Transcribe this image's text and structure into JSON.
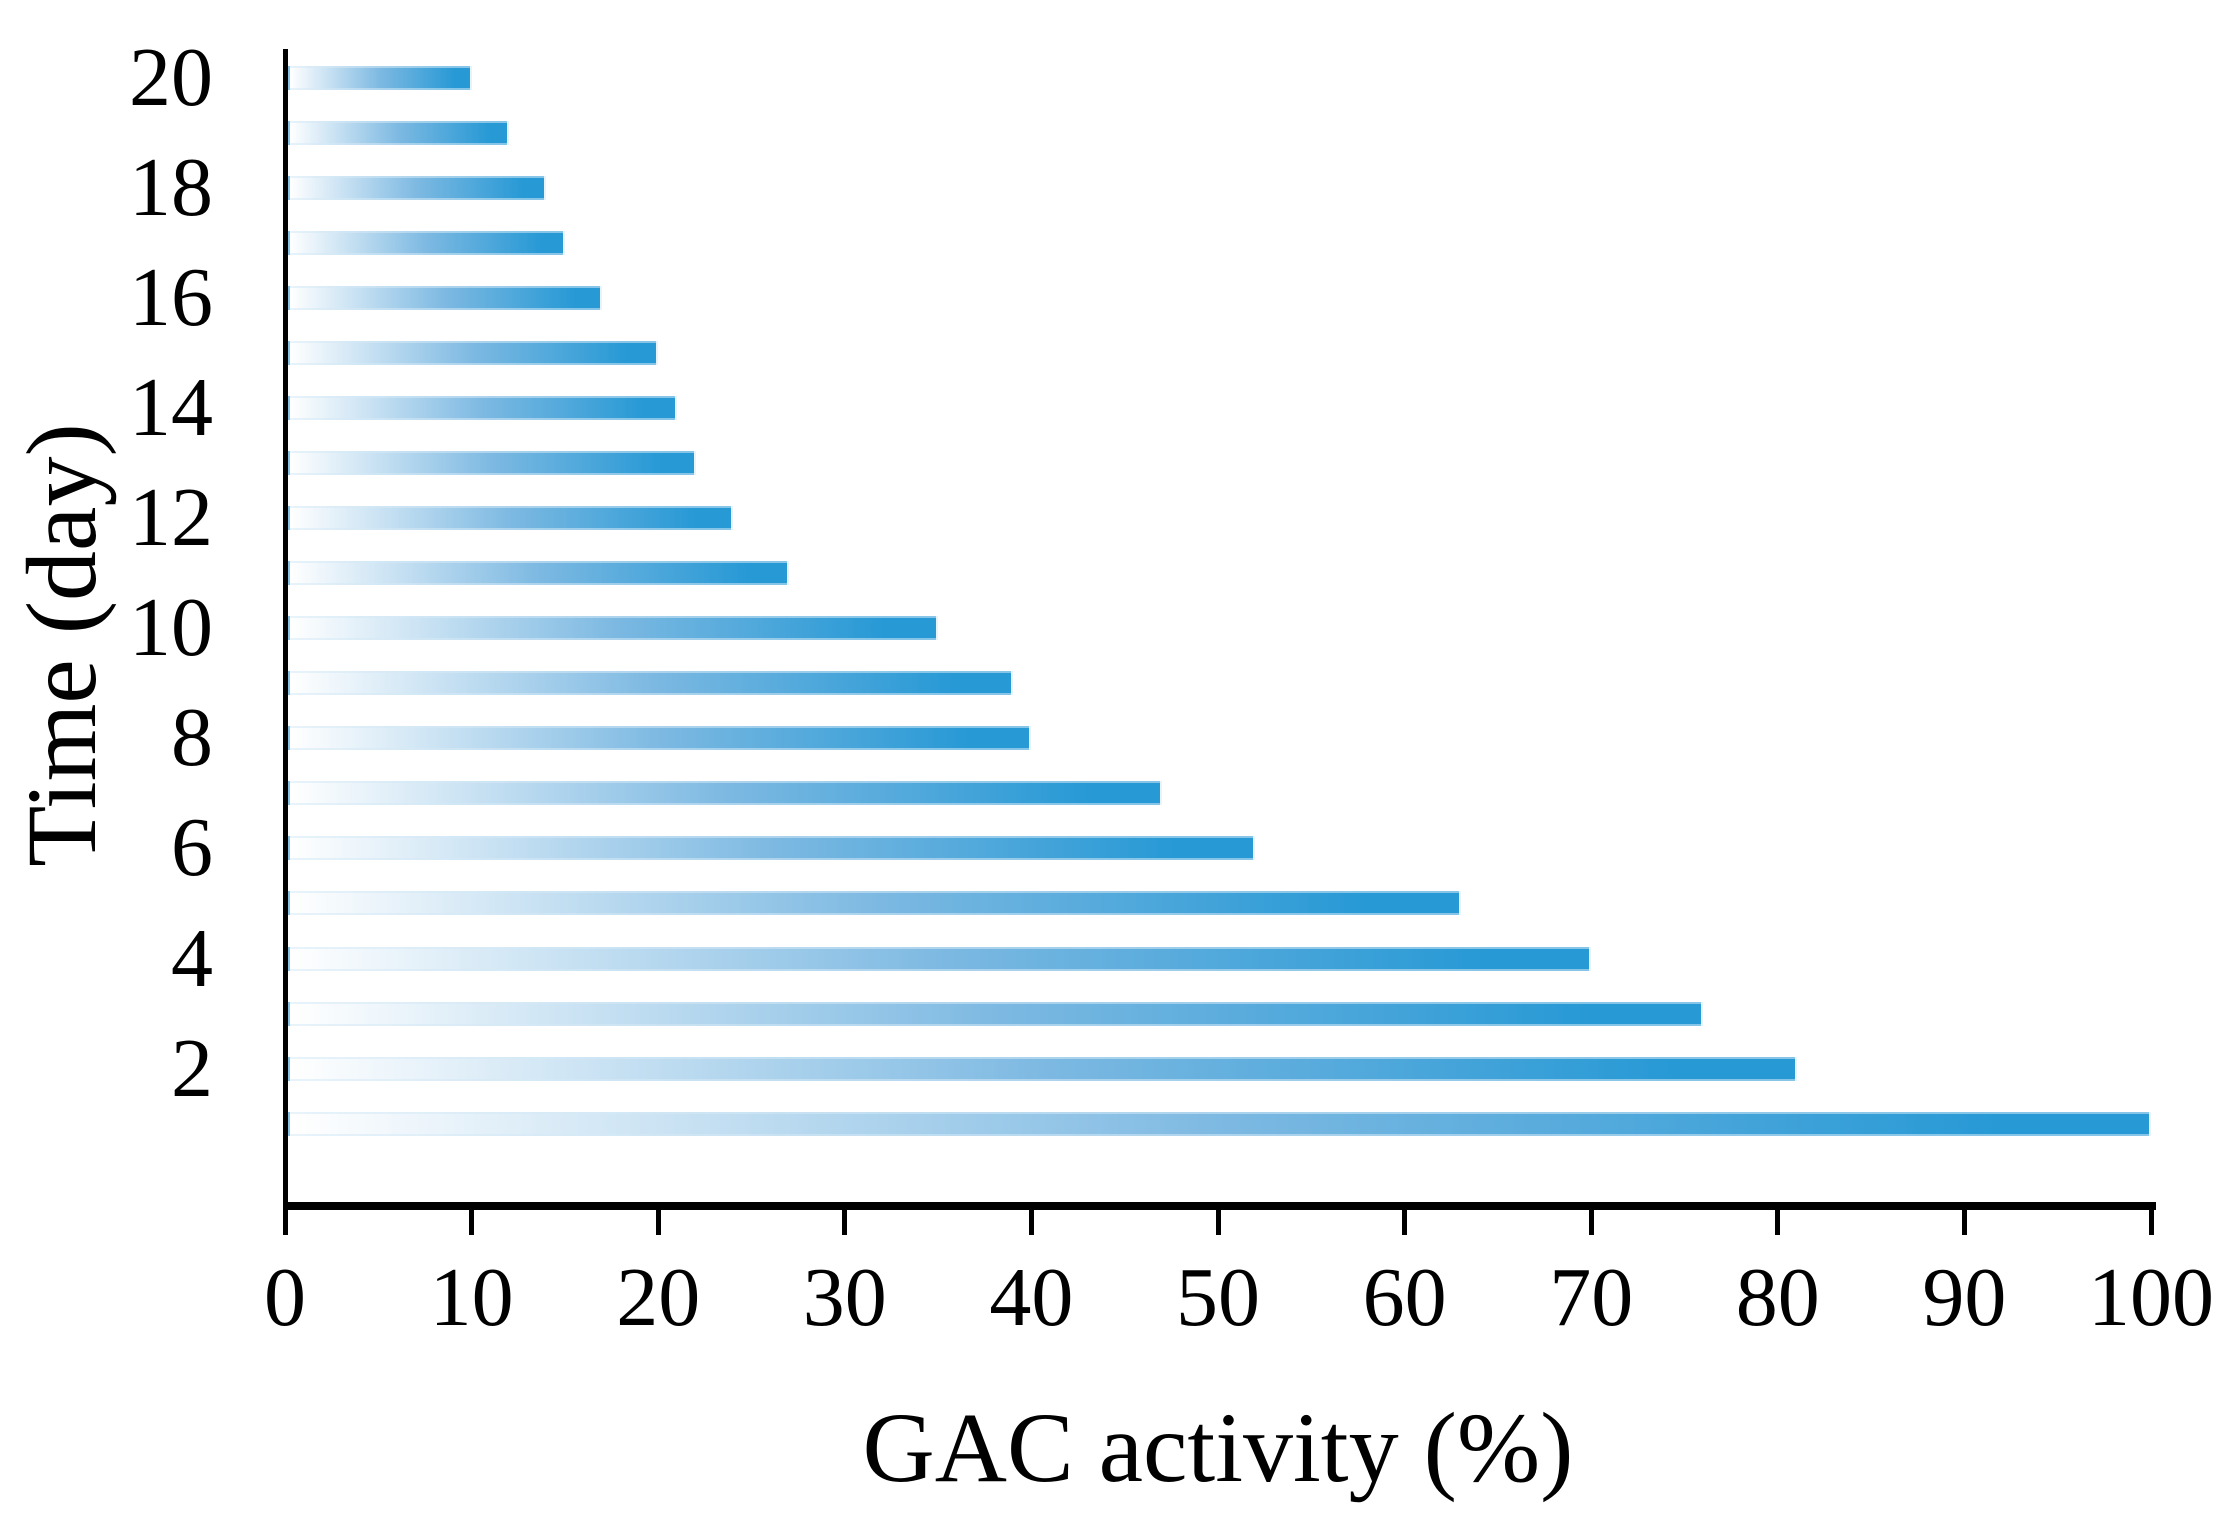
{
  "figure": {
    "background": "#ffffff",
    "axis_color": "#000000",
    "text_color": "#000000"
  },
  "chart_data": {
    "type": "bar",
    "orientation": "horizontal",
    "title": "",
    "xlabel": "GAC activity (%)",
    "ylabel": "Time (day)",
    "categories": [
      1,
      2,
      3,
      4,
      5,
      6,
      7,
      8,
      9,
      10,
      11,
      12,
      13,
      14,
      15,
      16,
      17,
      18,
      19,
      20
    ],
    "values": [
      100,
      81,
      76,
      70,
      63,
      52,
      47,
      40,
      39,
      35,
      27,
      24,
      22,
      21,
      20,
      17,
      15,
      14,
      12,
      10
    ],
    "xlim": [
      0,
      100
    ],
    "x_ticks": [
      0,
      10,
      20,
      30,
      40,
      50,
      60,
      70,
      80,
      90,
      100
    ],
    "y_labeled_days": [
      20,
      18,
      16,
      14,
      12,
      10,
      8,
      6,
      4,
      2
    ],
    "grid": false,
    "legend_position": "none",
    "bar_gradient": {
      "start": "#ffffff",
      "mid": "#7db9e2",
      "end": "#2799d5"
    }
  }
}
